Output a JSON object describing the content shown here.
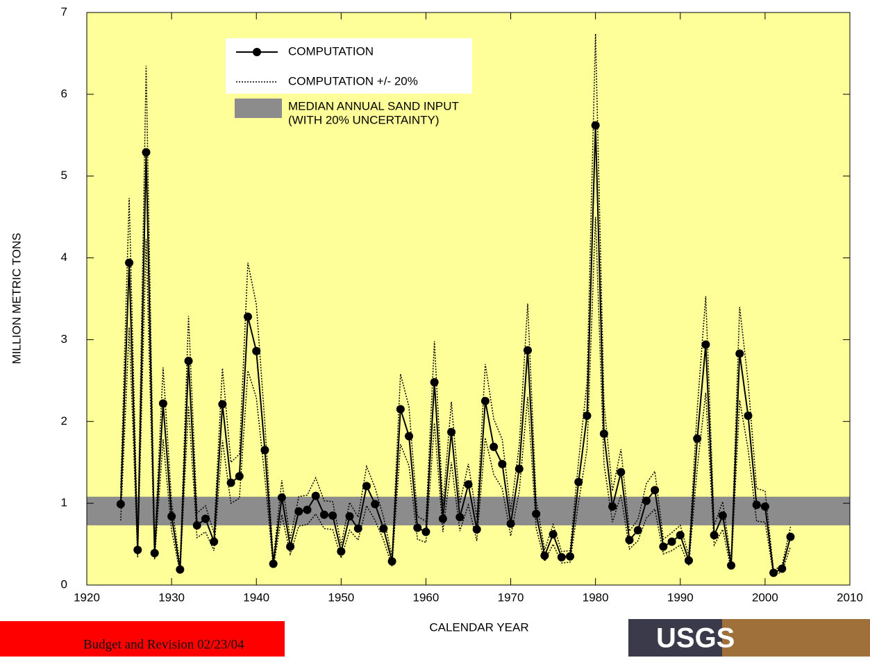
{
  "chart_data": {
    "type": "line",
    "xlabel": "CALENDAR YEAR",
    "ylabel": "MILLION METRIC TONS",
    "x": [
      1924,
      1925,
      1926,
      1927,
      1928,
      1929,
      1930,
      1931,
      1932,
      1933,
      1934,
      1935,
      1936,
      1937,
      1938,
      1939,
      1940,
      1941,
      1942,
      1943,
      1944,
      1945,
      1946,
      1947,
      1948,
      1949,
      1950,
      1951,
      1952,
      1953,
      1954,
      1955,
      1956,
      1957,
      1958,
      1959,
      1960,
      1961,
      1962,
      1963,
      1964,
      1965,
      1966,
      1967,
      1968,
      1969,
      1970,
      1971,
      1972,
      1973,
      1974,
      1975,
      1976,
      1977,
      1978,
      1979,
      1980,
      1981,
      1982,
      1983,
      1984,
      1985,
      1986,
      1987,
      1988,
      1989,
      1990,
      1991,
      1992,
      1993,
      1994,
      1995,
      1996,
      1997,
      1998,
      1999,
      2000,
      2001,
      2002,
      2003
    ],
    "series": [
      {
        "name": "COMPUTATION",
        "color": "#000000",
        "values": [
          0.99,
          3.94,
          0.43,
          5.29,
          0.39,
          2.22,
          0.84,
          0.19,
          2.74,
          0.73,
          0.81,
          0.53,
          2.21,
          1.25,
          1.33,
          3.28,
          2.86,
          1.65,
          0.26,
          1.07,
          0.47,
          0.9,
          0.92,
          1.09,
          0.86,
          0.85,
          0.41,
          0.84,
          0.69,
          1.21,
          0.99,
          0.69,
          0.29,
          2.15,
          1.82,
          0.7,
          0.65,
          2.48,
          0.81,
          1.87,
          0.83,
          1.23,
          0.68,
          2.25,
          1.69,
          1.48,
          0.75,
          1.42,
          2.87,
          0.87,
          0.36,
          0.62,
          0.34,
          0.35,
          1.26,
          2.07,
          5.62,
          1.85,
          0.96,
          1.38,
          0.55,
          0.67,
          1.03,
          1.16,
          0.47,
          0.53,
          0.61,
          0.3,
          1.79,
          2.94,
          0.61,
          0.85,
          0.24,
          2.83,
          2.07,
          0.98,
          0.96,
          0.15,
          0.2,
          0.59
        ]
      },
      {
        "name": "COMPUTATION +/- 20%",
        "color": "#000000",
        "upper": [
          1.19,
          4.73,
          0.52,
          6.35,
          0.47,
          2.66,
          1.01,
          0.23,
          3.29,
          0.88,
          0.97,
          0.64,
          2.65,
          1.5,
          1.6,
          3.94,
          3.43,
          1.98,
          0.31,
          1.28,
          0.56,
          1.08,
          1.1,
          1.31,
          1.03,
          1.02,
          0.49,
          1.01,
          0.83,
          1.45,
          1.19,
          0.83,
          0.35,
          2.58,
          2.18,
          0.84,
          0.78,
          2.98,
          0.97,
          2.24,
          1.0,
          1.48,
          0.82,
          2.7,
          2.03,
          1.78,
          0.9,
          1.7,
          3.44,
          1.04,
          0.43,
          0.74,
          0.41,
          0.42,
          1.51,
          2.48,
          6.74,
          2.22,
          1.15,
          1.66,
          0.66,
          0.8,
          1.24,
          1.39,
          0.56,
          0.64,
          0.73,
          0.36,
          2.15,
          3.53,
          0.73,
          1.02,
          0.29,
          3.4,
          2.48,
          1.18,
          1.15,
          0.18,
          0.24,
          0.71
        ],
        "lower": [
          0.79,
          3.15,
          0.34,
          4.23,
          0.31,
          1.78,
          0.67,
          0.15,
          2.19,
          0.58,
          0.65,
          0.42,
          1.77,
          1.0,
          1.06,
          2.62,
          2.29,
          1.32,
          0.21,
          0.86,
          0.38,
          0.72,
          0.74,
          0.87,
          0.69,
          0.68,
          0.33,
          0.67,
          0.55,
          0.97,
          0.79,
          0.55,
          0.23,
          1.72,
          1.46,
          0.56,
          0.52,
          1.98,
          0.65,
          1.5,
          0.66,
          0.98,
          0.54,
          1.8,
          1.35,
          1.18,
          0.6,
          1.14,
          2.3,
          0.7,
          0.29,
          0.5,
          0.27,
          0.28,
          1.01,
          1.66,
          4.5,
          1.48,
          0.77,
          1.1,
          0.44,
          0.54,
          0.82,
          0.93,
          0.38,
          0.42,
          0.49,
          0.24,
          1.43,
          2.35,
          0.49,
          0.68,
          0.19,
          2.26,
          1.66,
          0.78,
          0.77,
          0.12,
          0.16,
          0.47
        ]
      }
    ],
    "band": {
      "label": [
        "MEDIAN ANNUAL SAND INPUT",
        "(WITH 20% UNCERTAINTY)"
      ],
      "low": 0.73,
      "high": 1.08,
      "color": "#8c8c8c"
    },
    "xlim": [
      1920,
      2010
    ],
    "xticks": [
      1920,
      1930,
      1940,
      1950,
      1960,
      1970,
      1980,
      1990,
      2000,
      2010
    ],
    "ylim": [
      0,
      7
    ],
    "yticks": [
      0,
      1,
      2,
      3,
      4,
      5,
      6,
      7
    ],
    "background": "#ffff99"
  },
  "footer": {
    "note": "Budget and Revision 02/23/04",
    "logo": "USGS"
  }
}
